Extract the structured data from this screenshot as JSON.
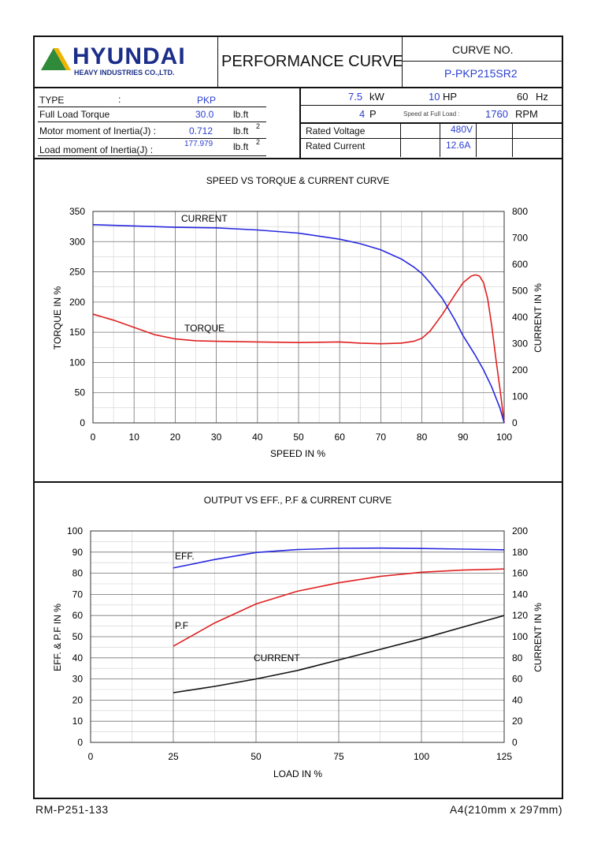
{
  "header": {
    "brand": "HYUNDAI",
    "brand_sub": "HEAVY INDUSTRIES CO.,LTD.",
    "title": "PERFORMANCE CURVE",
    "curve_no_label": "CURVE NO.",
    "curve_no": "P-PKP215SR2"
  },
  "specs": {
    "type_label": "TYPE",
    "type_colon": ":",
    "type_value": "PKP",
    "flt_label": "Full Load Torque",
    "flt_value": "30.0",
    "flt_unit": "lb.ft",
    "motor_j_label": "Motor moment of Inertia(J) :",
    "motor_j_value": "0.712",
    "motor_j_unit": "lb.ft",
    "motor_j_sup": "2",
    "load_j_label": "Load moment of Inertia(J) :",
    "load_j_value": "177.979",
    "load_j_unit": "lb.ft",
    "load_j_sup": "2",
    "kw_value": "7.5",
    "kw_unit": "kW",
    "hp_value": "10",
    "hp_unit": "HP",
    "hz_value": "60",
    "hz_unit": "Hz",
    "pole_value": "4",
    "pole_unit": "P",
    "speed_label": "Speed at Full Load :",
    "speed_value": "1760",
    "speed_unit": "RPM",
    "voltage_label": "Rated Voltage",
    "voltage_value": "480V",
    "current_label": "Rated Current",
    "current_value": "12.6A"
  },
  "footer": {
    "doc_no": "RM-P251-133",
    "paper": "A4(210mm x 297mm)"
  },
  "chart_data": [
    {
      "type": "line",
      "title": "SPEED VS TORQUE & CURRENT CURVE",
      "xlabel": "SPEED IN %",
      "ylabel": "TORQUE IN %",
      "y2label": "CURRENT IN %",
      "xlim": [
        0,
        100
      ],
      "ylim": [
        0,
        350
      ],
      "y2lim": [
        0,
        800
      ],
      "xticks": [
        "0",
        "10",
        "20",
        "30",
        "40",
        "50",
        "60",
        "70",
        "80",
        "90",
        "100"
      ],
      "yticks": [
        "0",
        "50",
        "100",
        "150",
        "200",
        "250",
        "300",
        "350"
      ],
      "y2ticks": [
        "0",
        "100",
        "200",
        "300",
        "400",
        "500",
        "600",
        "700",
        "800"
      ],
      "series": [
        {
          "name": "TORQUE",
          "axis": "left",
          "color": "#e02020",
          "x": [
            0,
            5,
            10,
            15,
            20,
            25,
            30,
            40,
            50,
            60,
            65,
            70,
            75,
            78,
            80,
            82,
            85,
            88,
            90,
            92,
            93,
            94,
            95,
            96,
            97,
            98,
            99,
            100
          ],
          "y": [
            180,
            170,
            158,
            146,
            139,
            136,
            135,
            134,
            133,
            134,
            132,
            131,
            132,
            135,
            140,
            152,
            180,
            212,
            232,
            243,
            245,
            243,
            232,
            205,
            160,
            105,
            55,
            0
          ]
        },
        {
          "name": "CURRENT",
          "axis": "right",
          "color": "#2828e0",
          "x": [
            0,
            10,
            20,
            30,
            40,
            50,
            60,
            65,
            70,
            75,
            78,
            80,
            82,
            85,
            88,
            90,
            93,
            95,
            97,
            99,
            100
          ],
          "y": [
            750,
            745,
            740,
            738,
            730,
            718,
            695,
            678,
            655,
            620,
            590,
            565,
            530,
            470,
            390,
            330,
            255,
            200,
            135,
            55,
            0
          ]
        }
      ],
      "annotations": [
        "CURRENT",
        "TORQUE"
      ]
    },
    {
      "type": "line",
      "title": "OUTPUT VS EFF., P.F & CURRENT CURVE",
      "xlabel": "LOAD IN %",
      "ylabel": "EFF. & P.F IN %",
      "y2label": "CURRENT IN %",
      "xlim": [
        0,
        125
      ],
      "ylim": [
        0,
        100
      ],
      "y2lim": [
        0,
        200
      ],
      "xticks": [
        "0",
        "25",
        "50",
        "75",
        "100",
        "125"
      ],
      "yticks": [
        "0",
        "10",
        "20",
        "30",
        "40",
        "50",
        "60",
        "70",
        "80",
        "90",
        "100"
      ],
      "y2ticks": [
        "0",
        "20",
        "40",
        "60",
        "80",
        "100",
        "120",
        "140",
        "160",
        "180",
        "200"
      ],
      "series": [
        {
          "name": "EFF.",
          "axis": "left",
          "color": "#2828e0",
          "x": [
            25,
            37.5,
            50,
            62.5,
            75,
            87.5,
            100,
            112.5,
            125
          ],
          "y": [
            82.5,
            86.5,
            89.8,
            91.2,
            91.8,
            91.9,
            91.7,
            91.4,
            91.1
          ]
        },
        {
          "name": "P.F",
          "axis": "left",
          "color": "#e02020",
          "x": [
            25,
            37.5,
            50,
            62.5,
            75,
            87.5,
            100,
            112.5,
            125
          ],
          "y": [
            45.5,
            56.5,
            65.5,
            71.5,
            75.5,
            78.5,
            80.5,
            81.5,
            82
          ]
        },
        {
          "name": "CURRENT",
          "axis": "right",
          "color": "#111111",
          "x": [
            25,
            37.5,
            50,
            62.5,
            75,
            87.5,
            100,
            112.5,
            125
          ],
          "y": [
            47,
            53,
            60,
            68,
            78,
            88,
            98,
            109,
            120
          ]
        }
      ],
      "annotations": [
        "EFF.",
        "P.F",
        "CURRENT"
      ]
    }
  ]
}
